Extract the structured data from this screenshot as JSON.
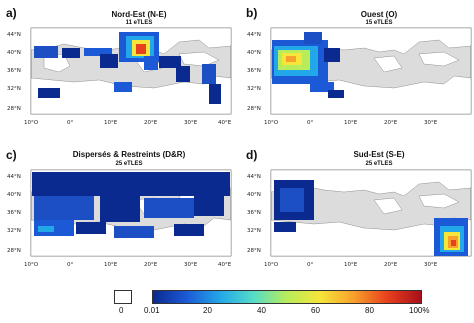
{
  "panels": [
    {
      "letter": "a)",
      "title": "Nord-Est (N-E)",
      "count": "11 eTLES"
    },
    {
      "letter": "b)",
      "title": "Ouest (O)",
      "count": "15 eTLES"
    },
    {
      "letter": "c)",
      "title": "Dispersés & Restreints (D&R)",
      "count": "25 eTLES"
    },
    {
      "letter": "d)",
      "title": "Sud-Est (S-E)",
      "count": "25 eTLES"
    }
  ],
  "lat_ticks": [
    "44°N",
    "40°N",
    "36°N",
    "32°N",
    "28°N"
  ],
  "lon_ticks": [
    "10°O",
    "0°",
    "10°E",
    "20°E",
    "30°E",
    "40°E"
  ],
  "colorbar": {
    "zero_label": "0",
    "ticks": [
      "0.01",
      "20",
      "40",
      "60",
      "80",
      "100%"
    ],
    "colors": [
      "#0a2a8f",
      "#1c59d6",
      "#22a7e8",
      "#55dcc7",
      "#b9ec5a",
      "#f6e53a",
      "#f7a02b",
      "#e8401e",
      "#a8101a"
    ]
  }
}
